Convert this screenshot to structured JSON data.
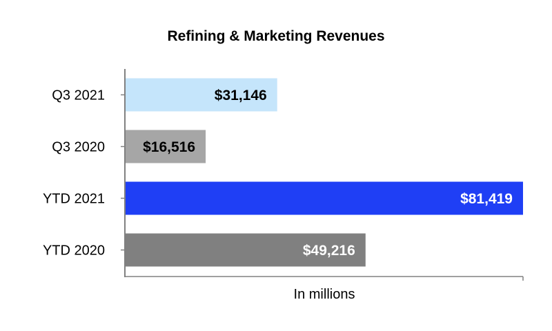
{
  "chart_data": {
    "type": "bar",
    "orientation": "horizontal",
    "title": "Refining & Marketing Revenues",
    "xlabel": "In millions",
    "ylabel": "",
    "xlim": [
      0,
      81419
    ],
    "grid": false,
    "categories": [
      "Q3 2021",
      "Q3 2020",
      "YTD 2021",
      "YTD 2020"
    ],
    "values": [
      31146,
      16516,
      81419,
      49216
    ],
    "value_labels": [
      "$31,146",
      "$16,516",
      "$81,419",
      "$49,216"
    ],
    "bar_colors": [
      "#c5e5fb",
      "#a6a6a6",
      "#1f3ff5",
      "#808080"
    ],
    "label_colors": [
      "#000000",
      "#000000",
      "#ffffff",
      "#ffffff"
    ]
  }
}
